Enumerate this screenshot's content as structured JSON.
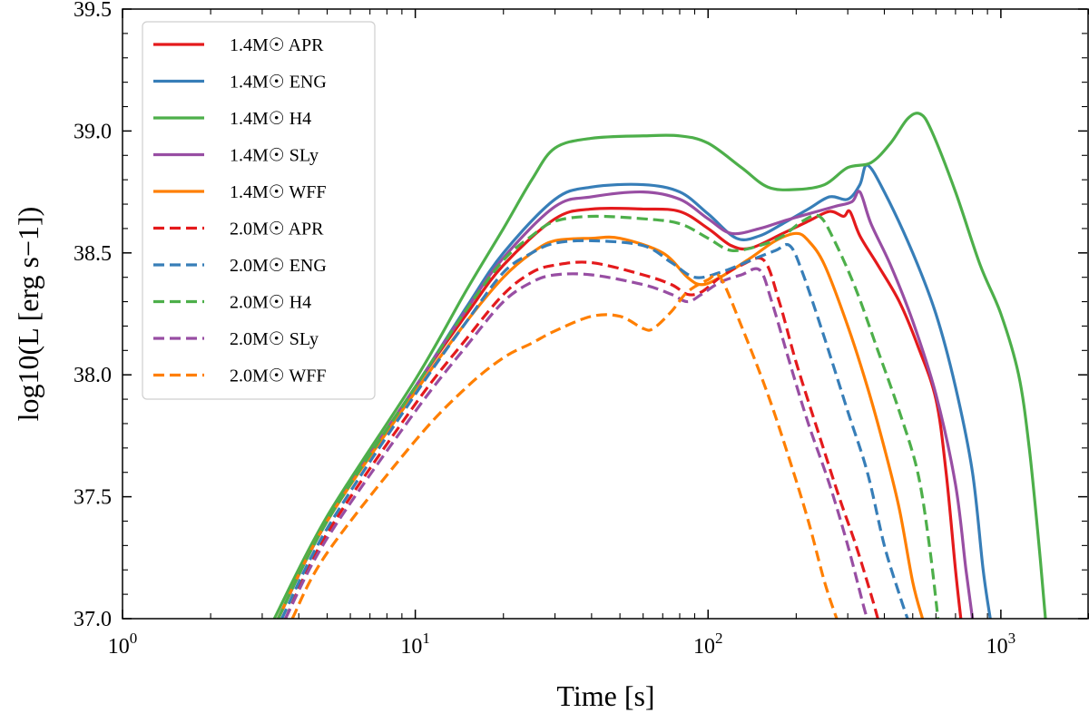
{
  "chart_data": {
    "type": "line",
    "xlabel": "Time [s]",
    "ylabel": "log10(L [erg s−1])",
    "xscale": "log",
    "xlim": [
      1,
      2000
    ],
    "ylim": [
      37.0,
      39.5
    ],
    "grid": false,
    "legend_position": "top-left",
    "x_tick_labels": [
      {
        "value": 1,
        "mantissa": "10",
        "exponent": "0"
      },
      {
        "value": 10,
        "mantissa": "10",
        "exponent": "1"
      },
      {
        "value": 100,
        "mantissa": "10",
        "exponent": "2"
      },
      {
        "value": 1000,
        "mantissa": "10",
        "exponent": "3"
      }
    ],
    "y_ticks": [
      {
        "value": 37.0,
        "label": "37.0"
      },
      {
        "value": 37.5,
        "label": "37.5"
      },
      {
        "value": 38.0,
        "label": "38.0"
      },
      {
        "value": 38.5,
        "label": "38.5"
      },
      {
        "value": 39.0,
        "label": "39.0"
      },
      {
        "value": 39.5,
        "label": "39.5"
      }
    ],
    "series": [
      {
        "name": "1.4M☉ APR",
        "mass": "1.4",
        "eos": "APR",
        "color": "#e41a1c",
        "style": "solid",
        "points": [
          [
            3.4,
            37.0
          ],
          [
            5,
            37.4
          ],
          [
            10,
            37.95
          ],
          [
            15,
            38.25
          ],
          [
            20,
            38.45
          ],
          [
            30,
            38.64
          ],
          [
            40,
            38.68
          ],
          [
            60,
            38.68
          ],
          [
            80,
            38.67
          ],
          [
            100,
            38.6
          ],
          [
            120,
            38.53
          ],
          [
            140,
            38.52
          ],
          [
            180,
            38.58
          ],
          [
            220,
            38.63
          ],
          [
            260,
            38.67
          ],
          [
            290,
            38.65
          ],
          [
            305,
            38.67
          ],
          [
            330,
            38.57
          ],
          [
            380,
            38.45
          ],
          [
            450,
            38.3
          ],
          [
            520,
            38.12
          ],
          [
            600,
            37.9
          ],
          [
            650,
            37.6
          ],
          [
            700,
            37.2
          ],
          [
            730,
            37.0
          ]
        ]
      },
      {
        "name": "1.4M☉ ENG",
        "mass": "1.4",
        "eos": "ENG",
        "color": "#377eb8",
        "style": "solid",
        "points": [
          [
            3.4,
            37.0
          ],
          [
            5,
            37.4
          ],
          [
            10,
            37.95
          ],
          [
            15,
            38.28
          ],
          [
            20,
            38.5
          ],
          [
            30,
            38.72
          ],
          [
            40,
            38.77
          ],
          [
            60,
            38.78
          ],
          [
            80,
            38.75
          ],
          [
            100,
            38.66
          ],
          [
            125,
            38.56
          ],
          [
            150,
            38.57
          ],
          [
            180,
            38.62
          ],
          [
            220,
            38.68
          ],
          [
            260,
            38.73
          ],
          [
            300,
            38.72
          ],
          [
            330,
            38.78
          ],
          [
            350,
            38.86
          ],
          [
            400,
            38.75
          ],
          [
            500,
            38.5
          ],
          [
            600,
            38.25
          ],
          [
            700,
            37.95
          ],
          [
            800,
            37.6
          ],
          [
            870,
            37.2
          ],
          [
            920,
            37.0
          ]
        ]
      },
      {
        "name": "1.4M☉ H4",
        "mass": "1.4",
        "eos": "H4",
        "color": "#4daf4a",
        "style": "solid",
        "points": [
          [
            3.3,
            37.0
          ],
          [
            5,
            37.42
          ],
          [
            10,
            37.98
          ],
          [
            15,
            38.35
          ],
          [
            20,
            38.6
          ],
          [
            25,
            38.8
          ],
          [
            30,
            38.93
          ],
          [
            40,
            38.97
          ],
          [
            60,
            38.98
          ],
          [
            80,
            38.98
          ],
          [
            100,
            38.95
          ],
          [
            130,
            38.85
          ],
          [
            160,
            38.77
          ],
          [
            200,
            38.76
          ],
          [
            250,
            38.78
          ],
          [
            300,
            38.85
          ],
          [
            360,
            38.87
          ],
          [
            420,
            38.95
          ],
          [
            480,
            39.05
          ],
          [
            530,
            39.07
          ],
          [
            580,
            39.0
          ],
          [
            700,
            38.75
          ],
          [
            850,
            38.45
          ],
          [
            1000,
            38.25
          ],
          [
            1150,
            38.0
          ],
          [
            1250,
            37.7
          ],
          [
            1350,
            37.3
          ],
          [
            1420,
            37.0
          ]
        ]
      },
      {
        "name": "1.4M☉ SLy",
        "mass": "1.4",
        "eos": "SLy",
        "color": "#984ea3",
        "style": "solid",
        "points": [
          [
            3.4,
            37.0
          ],
          [
            5,
            37.4
          ],
          [
            10,
            37.95
          ],
          [
            15,
            38.27
          ],
          [
            20,
            38.48
          ],
          [
            30,
            38.69
          ],
          [
            40,
            38.73
          ],
          [
            60,
            38.75
          ],
          [
            80,
            38.72
          ],
          [
            100,
            38.64
          ],
          [
            120,
            38.58
          ],
          [
            150,
            38.6
          ],
          [
            180,
            38.63
          ],
          [
            220,
            38.66
          ],
          [
            270,
            38.69
          ],
          [
            310,
            38.71
          ],
          [
            330,
            38.75
          ],
          [
            360,
            38.62
          ],
          [
            420,
            38.45
          ],
          [
            500,
            38.22
          ],
          [
            600,
            37.92
          ],
          [
            700,
            37.55
          ],
          [
            760,
            37.2
          ],
          [
            800,
            37.0
          ]
        ]
      },
      {
        "name": "1.4M☉ WFF",
        "mass": "1.4",
        "eos": "WFF",
        "color": "#ff7f00",
        "style": "solid",
        "points": [
          [
            3.4,
            37.0
          ],
          [
            5,
            37.4
          ],
          [
            10,
            37.93
          ],
          [
            15,
            38.22
          ],
          [
            20,
            38.4
          ],
          [
            25,
            38.5
          ],
          [
            30,
            38.55
          ],
          [
            40,
            38.56
          ],
          [
            50,
            38.56
          ],
          [
            70,
            38.5
          ],
          [
            85,
            38.4
          ],
          [
            95,
            38.37
          ],
          [
            110,
            38.4
          ],
          [
            140,
            38.48
          ],
          [
            170,
            38.55
          ],
          [
            200,
            38.58
          ],
          [
            220,
            38.55
          ],
          [
            250,
            38.45
          ],
          [
            300,
            38.2
          ],
          [
            350,
            37.95
          ],
          [
            400,
            37.7
          ],
          [
            450,
            37.45
          ],
          [
            500,
            37.15
          ],
          [
            540,
            37.0
          ]
        ]
      },
      {
        "name": "2.0M☉ APR",
        "mass": "2.0",
        "eos": "APR",
        "color": "#e41a1c",
        "style": "dashed",
        "points": [
          [
            3.6,
            37.0
          ],
          [
            5,
            37.35
          ],
          [
            10,
            37.88
          ],
          [
            15,
            38.15
          ],
          [
            20,
            38.33
          ],
          [
            25,
            38.42
          ],
          [
            30,
            38.45
          ],
          [
            40,
            38.46
          ],
          [
            60,
            38.41
          ],
          [
            75,
            38.37
          ],
          [
            85,
            38.33
          ],
          [
            95,
            38.34
          ],
          [
            110,
            38.4
          ],
          [
            130,
            38.45
          ],
          [
            155,
            38.47
          ],
          [
            175,
            38.3
          ],
          [
            200,
            38.05
          ],
          [
            240,
            37.75
          ],
          [
            280,
            37.5
          ],
          [
            320,
            37.3
          ],
          [
            360,
            37.1
          ],
          [
            380,
            37.0
          ]
        ]
      },
      {
        "name": "2.0M☉ ENG",
        "mass": "2.0",
        "eos": "ENG",
        "color": "#377eb8",
        "style": "dashed",
        "points": [
          [
            3.5,
            37.0
          ],
          [
            5,
            37.37
          ],
          [
            10,
            37.92
          ],
          [
            15,
            38.22
          ],
          [
            20,
            38.42
          ],
          [
            25,
            38.5
          ],
          [
            30,
            38.54
          ],
          [
            40,
            38.55
          ],
          [
            60,
            38.53
          ],
          [
            75,
            38.46
          ],
          [
            90,
            38.4
          ],
          [
            110,
            38.42
          ],
          [
            140,
            38.47
          ],
          [
            170,
            38.51
          ],
          [
            190,
            38.53
          ],
          [
            210,
            38.42
          ],
          [
            250,
            38.15
          ],
          [
            300,
            37.85
          ],
          [
            350,
            37.6
          ],
          [
            400,
            37.3
          ],
          [
            450,
            37.1
          ],
          [
            480,
            37.0
          ]
        ]
      },
      {
        "name": "2.0M☉ H4",
        "mass": "2.0",
        "eos": "H4",
        "color": "#4daf4a",
        "style": "dashed",
        "points": [
          [
            3.4,
            37.0
          ],
          [
            5,
            37.4
          ],
          [
            10,
            37.95
          ],
          [
            15,
            38.27
          ],
          [
            20,
            38.47
          ],
          [
            25,
            38.57
          ],
          [
            30,
            38.63
          ],
          [
            40,
            38.65
          ],
          [
            60,
            38.64
          ],
          [
            80,
            38.62
          ],
          [
            100,
            38.56
          ],
          [
            120,
            38.51
          ],
          [
            150,
            38.53
          ],
          [
            180,
            38.57
          ],
          [
            210,
            38.63
          ],
          [
            240,
            38.65
          ],
          [
            270,
            38.55
          ],
          [
            320,
            38.35
          ],
          [
            380,
            38.1
          ],
          [
            450,
            37.85
          ],
          [
            520,
            37.6
          ],
          [
            570,
            37.3
          ],
          [
            610,
            37.0
          ]
        ]
      },
      {
        "name": "2.0M☉ SLy",
        "mass": "2.0",
        "eos": "SLy",
        "color": "#984ea3",
        "style": "dashed",
        "points": [
          [
            3.6,
            37.0
          ],
          [
            5,
            37.33
          ],
          [
            10,
            37.85
          ],
          [
            15,
            38.12
          ],
          [
            20,
            38.3
          ],
          [
            25,
            38.38
          ],
          [
            30,
            38.41
          ],
          [
            40,
            38.41
          ],
          [
            60,
            38.37
          ],
          [
            75,
            38.33
          ],
          [
            85,
            38.3
          ],
          [
            95,
            38.33
          ],
          [
            110,
            38.38
          ],
          [
            130,
            38.41
          ],
          [
            150,
            38.43
          ],
          [
            165,
            38.3
          ],
          [
            190,
            38.05
          ],
          [
            220,
            37.8
          ],
          [
            260,
            37.55
          ],
          [
            300,
            37.3
          ],
          [
            340,
            37.05
          ],
          [
            350,
            37.0
          ]
        ]
      },
      {
        "name": "2.0M☉ WFF",
        "mass": "2.0",
        "eos": "WFF",
        "color": "#ff7f00",
        "style": "dashed",
        "points": [
          [
            3.8,
            37.0
          ],
          [
            5,
            37.27
          ],
          [
            10,
            37.73
          ],
          [
            15,
            37.95
          ],
          [
            20,
            38.07
          ],
          [
            25,
            38.13
          ],
          [
            30,
            38.18
          ],
          [
            40,
            38.24
          ],
          [
            50,
            38.24
          ],
          [
            60,
            38.19
          ],
          [
            65,
            38.19
          ],
          [
            75,
            38.26
          ],
          [
            85,
            38.34
          ],
          [
            100,
            38.39
          ],
          [
            110,
            38.4
          ],
          [
            130,
            38.2
          ],
          [
            160,
            37.92
          ],
          [
            190,
            37.65
          ],
          [
            220,
            37.4
          ],
          [
            250,
            37.15
          ],
          [
            275,
            37.0
          ]
        ]
      }
    ]
  }
}
